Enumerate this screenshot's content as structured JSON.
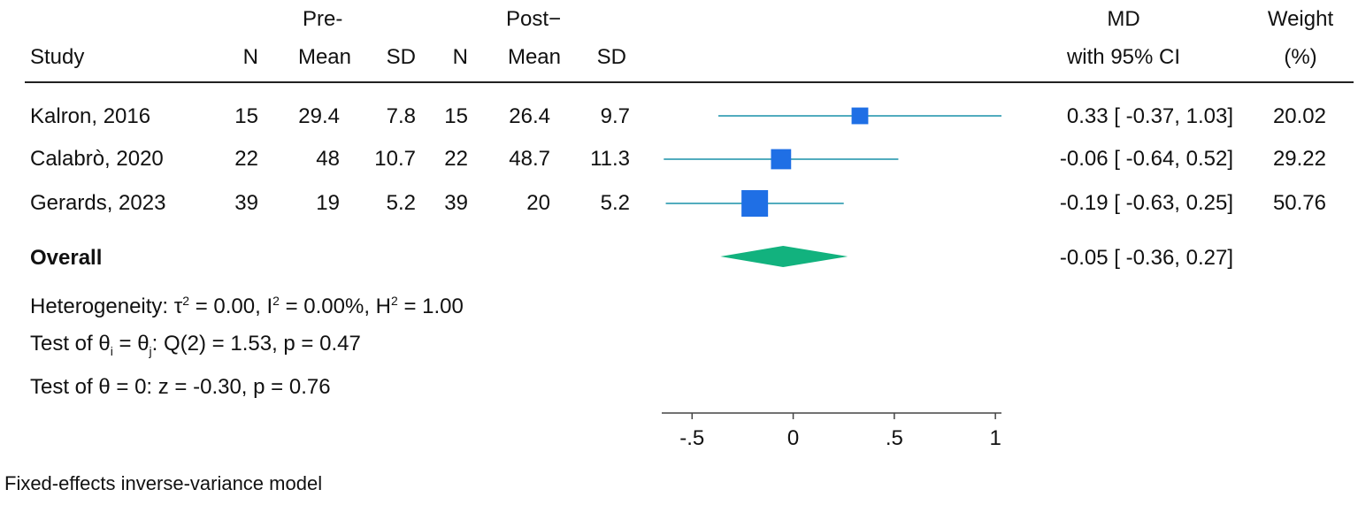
{
  "header": {
    "group_pre": "Pre-",
    "group_post": "Post−",
    "study": "Study",
    "n": "N",
    "mean": "Mean",
    "sd": "SD",
    "md_line1": "MD",
    "md_line2": "with 95% CI",
    "weight_line1": "Weight",
    "weight_line2": "(%)"
  },
  "rows": [
    {
      "study": "Kalron, 2016",
      "pre_n": "15",
      "pre_mean": "29.4",
      "pre_sd": "7.8",
      "post_n": "15",
      "post_mean": "26.4",
      "post_sd": "9.7",
      "ci_text": "0.33 [ -0.37,  1.03]",
      "weight": "20.02"
    },
    {
      "study": "Calabrò, 2020",
      "pre_n": "22",
      "pre_mean": "48",
      "pre_sd": "10.7",
      "post_n": "22",
      "post_mean": "48.7",
      "post_sd": "11.3",
      "ci_text": "-0.06 [ -0.64,  0.52]",
      "weight": "29.22"
    },
    {
      "study": "Gerards, 2023",
      "pre_n": "39",
      "pre_mean": "19",
      "pre_sd": "5.2",
      "post_n": "39",
      "post_mean": "20",
      "post_sd": "5.2",
      "ci_text": "-0.19 [ -0.63,  0.25]",
      "weight": "50.76"
    }
  ],
  "overall": {
    "label": "Overall",
    "ci_text": "-0.05 [ -0.36,  0.27]"
  },
  "stats": {
    "heterogeneity_label": "Heterogeneity: τ",
    "heterogeneity_mid1": " = 0.00, I",
    "heterogeneity_mid2": " = 0.00%, H",
    "heterogeneity_end": " = 1.00",
    "sup": "2",
    "test1_pre": "Test of θ",
    "test1_sub1": "i",
    "test1_mid": " = θ",
    "test1_sub2": "j",
    "test1_end": ": Q(2) = 1.53, p = 0.47",
    "test2": "Test of θ = 0: z = -0.30, p = 0.76"
  },
  "footnote": "Fixed-effects inverse-variance model",
  "chart_data": {
    "type": "forest",
    "categories": [
      "Kalron, 2016",
      "Calabrò, 2020",
      "Gerards, 2023"
    ],
    "estimates": [
      0.33,
      -0.06,
      -0.19
    ],
    "ci_lower": [
      -0.37,
      -0.64,
      -0.63
    ],
    "ci_upper": [
      1.03,
      0.52,
      0.25
    ],
    "weights": [
      20.02,
      29.22,
      50.76
    ],
    "overall": {
      "estimate": -0.05,
      "ci_lower": -0.36,
      "ci_upper": 0.27
    },
    "xlim": [
      -0.65,
      1.03
    ],
    "xticks": [
      -0.5,
      0,
      0.5,
      1
    ],
    "xtick_labels": [
      "-.5",
      "0",
      ".5",
      "1"
    ],
    "colors": {
      "ci_line": "#3aa0b5",
      "marker": "#1f6fe5",
      "diamond": "#12b27e",
      "axis": "#444444"
    }
  }
}
